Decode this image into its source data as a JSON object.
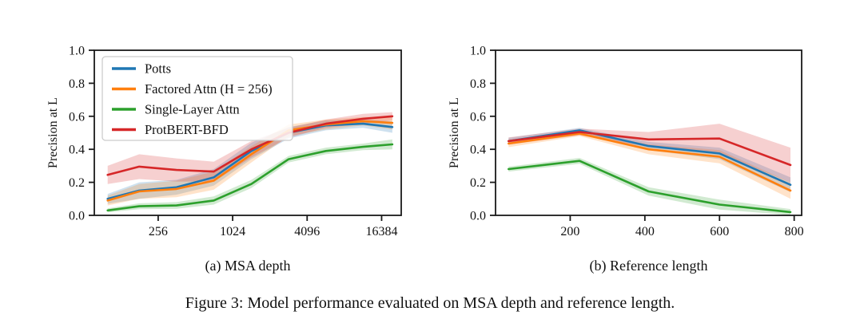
{
  "figure": {
    "caption": "Figure 3: Model performance evaluated on MSA depth and reference length.",
    "subcaptions": {
      "a": "(a) MSA depth",
      "b": "(b) Reference length"
    }
  },
  "colors": {
    "potts": "#1f77b4",
    "factored_attn": "#ff7f0e",
    "single_layer_attn": "#2ca02c",
    "protbert_bfd": "#d62728",
    "axis": "#1a1a1a",
    "legend_border": "#cccccc"
  },
  "chart_data": [
    {
      "id": "a",
      "type": "line",
      "title": "(a) MSA depth",
      "ylabel": "Precision at L",
      "xlabel": "",
      "x_scale": "log2",
      "xlim": [
        78,
        23600
      ],
      "ylim": [
        0,
        1
      ],
      "x_ticks": [
        256,
        1024,
        4096,
        16384
      ],
      "x_tick_labels": [
        "256",
        "1024",
        "4096",
        "16384"
      ],
      "y_ticks": [
        0.0,
        0.2,
        0.4,
        0.6,
        0.8,
        1.0
      ],
      "grid": false,
      "legend": {
        "show": true,
        "position": "upper-left"
      },
      "x": [
        100,
        180,
        360,
        720,
        1450,
        2900,
        5800,
        11600,
        20000
      ],
      "series": [
        {
          "name": "Potts",
          "color": "#1f77b4",
          "values": [
            0.1,
            0.15,
            0.17,
            0.23,
            0.39,
            0.5,
            0.545,
            0.555,
            0.535
          ],
          "band": [
            0.03,
            0.05,
            0.045,
            0.05,
            0.05,
            0.035,
            0.03,
            0.025,
            0.035
          ]
        },
        {
          "name": "Factored Attn (H = 256)",
          "color": "#ff7f0e",
          "values": [
            0.09,
            0.145,
            0.16,
            0.21,
            0.37,
            0.515,
            0.55,
            0.57,
            0.56
          ],
          "band": [
            0.03,
            0.045,
            0.05,
            0.055,
            0.05,
            0.035,
            0.03,
            0.025,
            0.04
          ]
        },
        {
          "name": "Single-Layer Attn",
          "color": "#2ca02c",
          "values": [
            0.03,
            0.055,
            0.06,
            0.09,
            0.19,
            0.34,
            0.39,
            0.415,
            0.43
          ],
          "band": [
            0.012,
            0.018,
            0.02,
            0.025,
            0.025,
            0.02,
            0.02,
            0.02,
            0.03
          ]
        },
        {
          "name": "ProtBERT-BFD",
          "color": "#d62728",
          "values": [
            0.245,
            0.295,
            0.275,
            0.265,
            0.4,
            0.5,
            0.555,
            0.585,
            0.6
          ],
          "band": [
            0.055,
            0.075,
            0.07,
            0.06,
            0.05,
            0.03,
            0.025,
            0.03,
            0.025
          ]
        }
      ]
    },
    {
      "id": "b",
      "type": "line",
      "title": "(b) Reference length",
      "ylabel": "Precision at L",
      "xlabel": "",
      "x_scale": "linear",
      "xlim": [
        0,
        820
      ],
      "ylim": [
        0,
        1
      ],
      "x_ticks": [
        200,
        400,
        600,
        800
      ],
      "x_tick_labels": [
        "200",
        "400",
        "600",
        "800"
      ],
      "y_ticks": [
        0.0,
        0.2,
        0.4,
        0.6,
        0.8,
        1.0
      ],
      "grid": false,
      "legend": {
        "show": false
      },
      "x": [
        35,
        225,
        410,
        600,
        790
      ],
      "series": [
        {
          "name": "Potts",
          "color": "#1f77b4",
          "values": [
            0.45,
            0.515,
            0.42,
            0.375,
            0.185
          ],
          "band": [
            0.02,
            0.015,
            0.025,
            0.035,
            0.045
          ]
        },
        {
          "name": "Factored Attn (H = 256)",
          "color": "#ff7f0e",
          "values": [
            0.435,
            0.495,
            0.4,
            0.355,
            0.15
          ],
          "band": [
            0.022,
            0.015,
            0.03,
            0.04,
            0.05
          ]
        },
        {
          "name": "Single-Layer Attn",
          "color": "#2ca02c",
          "values": [
            0.28,
            0.33,
            0.145,
            0.065,
            0.02
          ],
          "band": [
            0.015,
            0.018,
            0.025,
            0.03,
            0.018
          ]
        },
        {
          "name": "ProtBERT-BFD",
          "color": "#d62728",
          "values": [
            0.45,
            0.505,
            0.46,
            0.465,
            0.305
          ],
          "band": [
            0.022,
            0.02,
            0.045,
            0.09,
            0.105
          ]
        }
      ]
    }
  ]
}
